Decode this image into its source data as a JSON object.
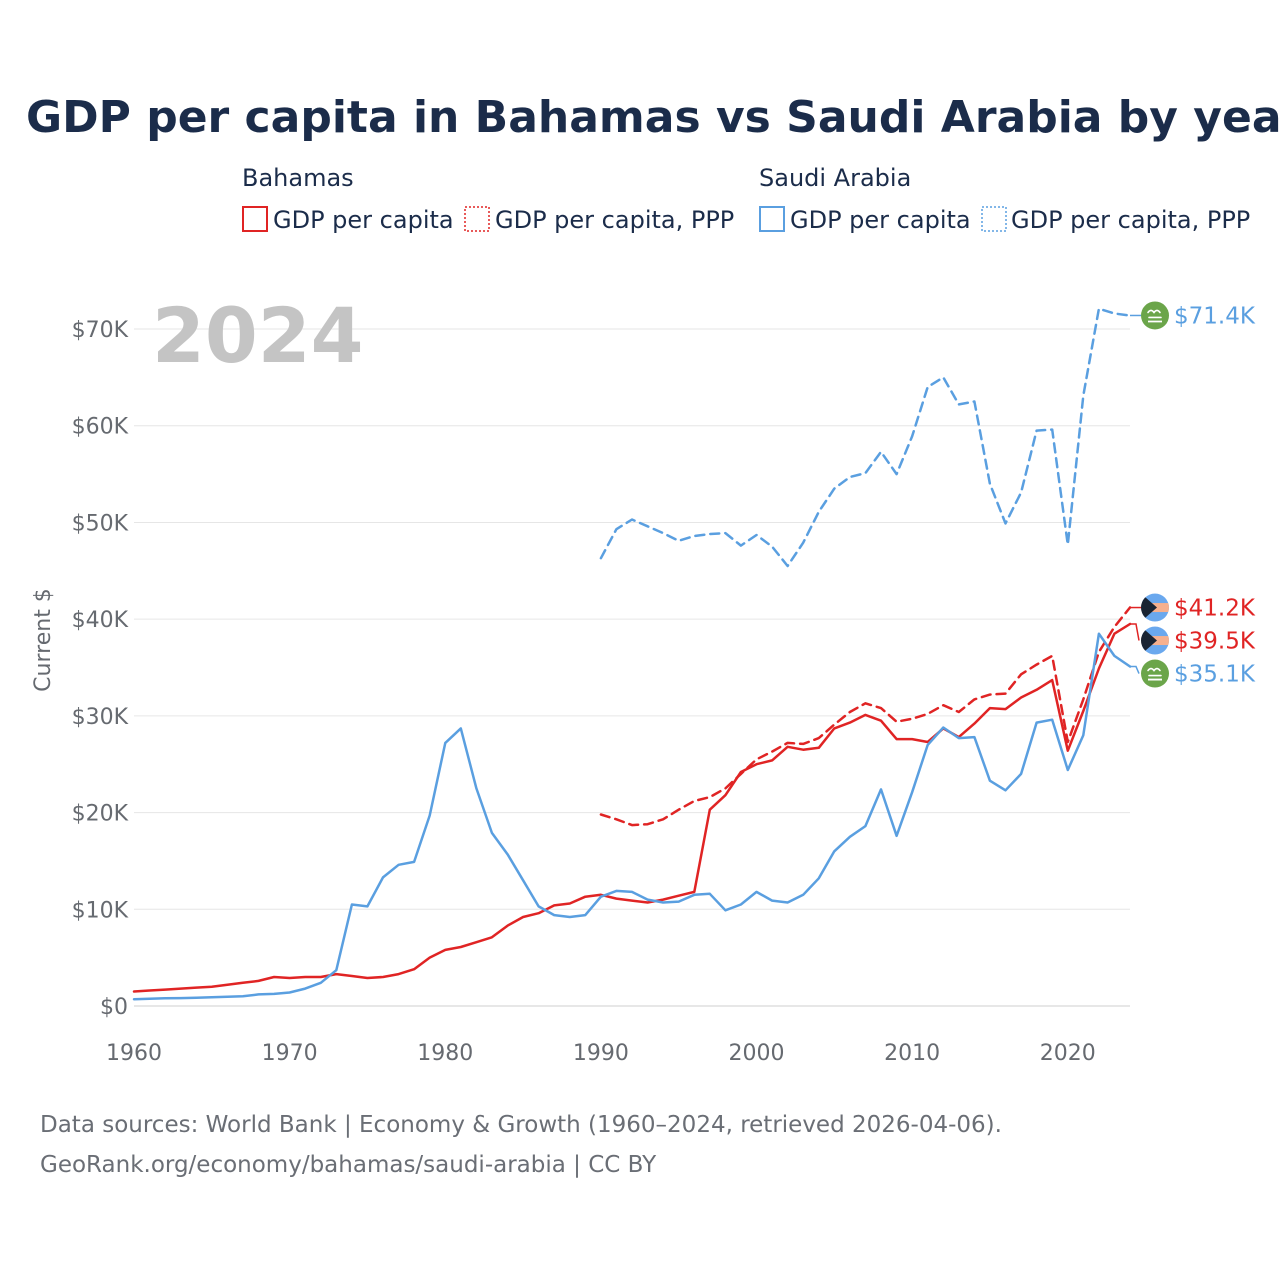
{
  "chart_data": {
    "type": "line",
    "title": "GDP per capita in Bahamas vs Saudi Arabia by year",
    "watermark_year": "2024",
    "ylabel": "Current $",
    "xlabel": "",
    "xlim": [
      1960,
      2024
    ],
    "ylim": [
      0,
      73000
    ],
    "x_ticks": [
      1960,
      1970,
      1980,
      1990,
      2000,
      2010,
      2020
    ],
    "x_tick_labels": [
      "1960",
      "1970",
      "1980",
      "1990",
      "2000",
      "2010",
      "2020"
    ],
    "y_ticks": [
      0,
      10000,
      20000,
      30000,
      40000,
      50000,
      60000,
      70000
    ],
    "y_tick_labels": [
      "$0",
      "$10K",
      "$20K",
      "$30K",
      "$40K",
      "$50K",
      "$60K",
      "$70K"
    ],
    "grid": true,
    "legend": {
      "placement": "top",
      "groups": [
        {
          "name": "Bahamas",
          "items": [
            "GDP per capita",
            "GDP per capita, PPP"
          ]
        },
        {
          "name": "Saudi Arabia",
          "items": [
            "GDP per capita",
            "GDP per capita, PPP"
          ]
        }
      ]
    },
    "series": [
      {
        "name": "Bahamas GDP per capita",
        "country": "Bahamas",
        "color": "#e02424",
        "dash": "solid",
        "end_label": "$39.5K",
        "x": [
          1960,
          1961,
          1962,
          1963,
          1964,
          1965,
          1966,
          1967,
          1968,
          1969,
          1970,
          1971,
          1972,
          1973,
          1974,
          1975,
          1976,
          1977,
          1978,
          1979,
          1980,
          1981,
          1982,
          1983,
          1984,
          1985,
          1986,
          1987,
          1988,
          1989,
          1990,
          1991,
          1992,
          1993,
          1994,
          1995,
          1996,
          1997,
          1998,
          1999,
          2000,
          2001,
          2002,
          2003,
          2004,
          2005,
          2006,
          2007,
          2008,
          2009,
          2010,
          2011,
          2012,
          2013,
          2014,
          2015,
          2016,
          2017,
          2018,
          2019,
          2020,
          2021,
          2022,
          2023,
          2024
        ],
        "y": [
          1500,
          1600,
          1700,
          1800,
          1900,
          2000,
          2200,
          2400,
          2600,
          3000,
          2900,
          3000,
          3000,
          3300,
          3100,
          2900,
          3000,
          3300,
          3800,
          5000,
          5800,
          6100,
          6600,
          7100,
          8300,
          9200,
          9600,
          10400,
          10600,
          11300,
          11500,
          11100,
          10900,
          10700,
          11000,
          11400,
          11800,
          20300,
          21800,
          24200,
          25000,
          25400,
          26800,
          26500,
          26700,
          28700,
          29300,
          30100,
          29500,
          27600,
          27600,
          27300,
          28700,
          27800,
          29200,
          30800,
          30700,
          31900,
          32700,
          33700,
          26400,
          30500,
          34900,
          38500,
          39500
        ]
      },
      {
        "name": "Bahamas GDP per capita, PPP",
        "country": "Bahamas",
        "color": "#e02424",
        "dash": "dashed",
        "end_label": "$41.2K",
        "x": [
          1990,
          1991,
          1992,
          1993,
          1994,
          1995,
          1996,
          1997,
          1998,
          1999,
          2000,
          2001,
          2002,
          2003,
          2004,
          2005,
          2006,
          2007,
          2008,
          2009,
          2010,
          2011,
          2012,
          2013,
          2014,
          2015,
          2016,
          2017,
          2018,
          2019,
          2020,
          2021,
          2022,
          2023,
          2024
        ],
        "y": [
          19800,
          19300,
          18700,
          18800,
          19300,
          20300,
          21200,
          21600,
          22500,
          24000,
          25500,
          26300,
          27200,
          27100,
          27700,
          29100,
          30400,
          31300,
          30800,
          29400,
          29700,
          30200,
          31100,
          30400,
          31700,
          32200,
          32300,
          34300,
          35300,
          36200,
          27300,
          31700,
          36600,
          39200,
          41200
        ]
      },
      {
        "name": "Saudi Arabia GDP per capita",
        "country": "Saudi Arabia",
        "color": "#5a9fe0",
        "dash": "solid",
        "end_label": "$35.1K",
        "x": [
          1960,
          1961,
          1962,
          1963,
          1964,
          1965,
          1966,
          1967,
          1968,
          1969,
          1970,
          1971,
          1972,
          1973,
          1974,
          1975,
          1976,
          1977,
          1978,
          1979,
          1980,
          1981,
          1982,
          1983,
          1984,
          1985,
          1986,
          1987,
          1988,
          1989,
          1990,
          1991,
          1992,
          1993,
          1994,
          1995,
          1996,
          1997,
          1998,
          1999,
          2000,
          2001,
          2002,
          2003,
          2004,
          2005,
          2006,
          2007,
          2008,
          2009,
          2010,
          2011,
          2012,
          2013,
          2014,
          2015,
          2016,
          2017,
          2018,
          2019,
          2020,
          2021,
          2022,
          2023,
          2024
        ],
        "y": [
          700,
          750,
          800,
          820,
          850,
          900,
          950,
          1000,
          1200,
          1250,
          1400,
          1800,
          2400,
          3700,
          10500,
          10300,
          13300,
          14600,
          14900,
          19700,
          27200,
          28700,
          22500,
          17900,
          15700,
          13000,
          10300,
          9400,
          9200,
          9400,
          11300,
          11900,
          11800,
          11000,
          10700,
          10800,
          11500,
          11600,
          9900,
          10500,
          11800,
          10900,
          10700,
          11500,
          13200,
          16000,
          17500,
          18600,
          22400,
          17600,
          22100,
          27000,
          28800,
          27700,
          27800,
          23300,
          22300,
          24000,
          29300,
          29600,
          24400,
          28000,
          38500,
          36200,
          35100
        ]
      },
      {
        "name": "Saudi Arabia GDP per capita, PPP",
        "country": "Saudi Arabia",
        "color": "#5a9fe0",
        "dash": "dashed",
        "end_label": "$71.4K",
        "x": [
          1990,
          1991,
          1992,
          1993,
          1994,
          1995,
          1996,
          1997,
          1998,
          1999,
          2000,
          2001,
          2002,
          2003,
          2004,
          2005,
          2006,
          2007,
          2008,
          2009,
          2010,
          2011,
          2012,
          2013,
          2014,
          2015,
          2016,
          2017,
          2018,
          2019,
          2020,
          2021,
          2022,
          2023,
          2024
        ],
        "y": [
          46300,
          49300,
          50300,
          49600,
          48900,
          48100,
          48600,
          48800,
          48900,
          47600,
          48700,
          47500,
          45500,
          47900,
          51100,
          53500,
          54700,
          55100,
          57300,
          55000,
          58900,
          64000,
          65000,
          62200,
          62500,
          54000,
          49900,
          53100,
          59500,
          59600,
          47700,
          63100,
          72100,
          71600,
          71400
        ]
      }
    ]
  },
  "footer": {
    "source_line1": "Data sources: World Bank | Economy & Growth (1960–2024, retrieved 2026-04-06).",
    "source_line2": "GeoRank.org/economy/bahamas/saudi-arabia | CC BY"
  }
}
